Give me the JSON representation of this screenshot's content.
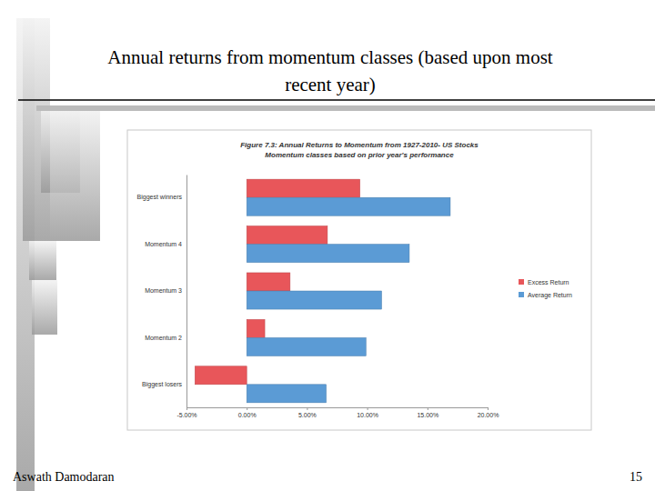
{
  "chart_data": {
    "type": "bar",
    "orientation": "horizontal",
    "title": "Figure 7.3: Annual Returns to Momentum from 1927-2010- US Stocks",
    "subtitle": "Momentum classes based on prior year's performance",
    "categories": [
      "Biggest winners",
      "Momentum 4",
      "Momentum 3",
      "Momentum 2",
      "Biggest losers"
    ],
    "series": [
      {
        "name": "Excess Return",
        "color": "#e8565a",
        "values": [
          9.4,
          6.7,
          3.6,
          1.5,
          -4.3
        ]
      },
      {
        "name": "Average Return",
        "color": "#5b9bd5",
        "values": [
          16.9,
          13.5,
          11.2,
          9.9,
          6.6
        ]
      }
    ],
    "xlim": [
      -5,
      20
    ],
    "xticks": [
      {
        "value": -5,
        "label": "-5.00%"
      },
      {
        "value": 0,
        "label": "0.00%"
      },
      {
        "value": 5,
        "label": "5.00%"
      },
      {
        "value": 10,
        "label": "10.00%"
      },
      {
        "value": 15,
        "label": "15.00%"
      },
      {
        "value": 20,
        "label": "20.00%"
      }
    ],
    "legend": "right",
    "grid": false
  },
  "slide": {
    "title_lines": [
      "Annual returns from momentum classes (based upon most",
      "recent year)"
    ],
    "footer": "Aswath Damodaran",
    "page": "15"
  }
}
